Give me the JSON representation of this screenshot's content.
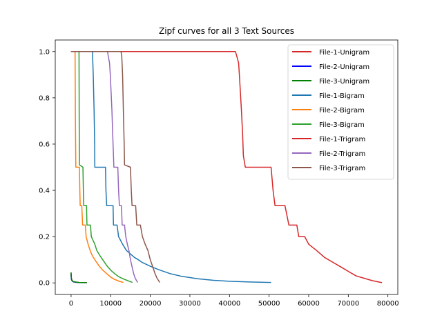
{
  "chart_data": {
    "type": "line",
    "title": "Zipf curves for all 3 Text Sources",
    "xlabel": "",
    "ylabel": "",
    "xlim": [
      -4000,
      82500
    ],
    "ylim": [
      -0.05,
      1.05
    ],
    "xticks": [
      0,
      10000,
      20000,
      30000,
      40000,
      50000,
      60000,
      70000,
      80000
    ],
    "xtick_labels": [
      "0",
      "10000",
      "20000",
      "30000",
      "40000",
      "50000",
      "60000",
      "70000",
      "80000"
    ],
    "yticks": [
      0.0,
      0.2,
      0.4,
      0.6,
      0.8,
      1.0
    ],
    "ytick_labels": [
      "0.0",
      "0.2",
      "0.4",
      "0.6",
      "0.8",
      "1.0"
    ],
    "grid": false,
    "legend_position": "top-right",
    "series": [
      {
        "name": "File-1-Unigram",
        "color": "#d62728",
        "points": [
          [
            0,
            0.045
          ],
          [
            30,
            0.03
          ],
          [
            80,
            0.02
          ],
          [
            200,
            0.012
          ],
          [
            500,
            0.006
          ],
          [
            1000,
            0.004
          ],
          [
            2000,
            0.002
          ],
          [
            4000,
            0.001
          ]
        ]
      },
      {
        "name": "File-2-Unigram",
        "color": "#0000ff",
        "points": [
          [
            0,
            0.04
          ],
          [
            30,
            0.025
          ],
          [
            80,
            0.015
          ],
          [
            200,
            0.01
          ],
          [
            500,
            0.005
          ],
          [
            1000,
            0.003
          ],
          [
            2000,
            0.0015
          ],
          [
            3500,
            0.001
          ]
        ]
      },
      {
        "name": "File-3-Unigram",
        "color": "#008000",
        "points": [
          [
            0,
            0.045
          ],
          [
            30,
            0.03
          ],
          [
            80,
            0.02
          ],
          [
            200,
            0.012
          ],
          [
            500,
            0.006
          ],
          [
            1000,
            0.004
          ],
          [
            2000,
            0.002
          ],
          [
            4000,
            0.001
          ]
        ]
      },
      {
        "name": "File-1-Bigram",
        "color": "#1f77b4",
        "points": [
          [
            0,
            1.0
          ],
          [
            5400,
            1.0
          ],
          [
            5600,
            0.9
          ],
          [
            5800,
            0.75
          ],
          [
            5950,
            0.6
          ],
          [
            6000,
            0.5
          ],
          [
            8700,
            0.5
          ],
          [
            8800,
            0.4
          ],
          [
            9000,
            0.334
          ],
          [
            10600,
            0.334
          ],
          [
            10700,
            0.25
          ],
          [
            11600,
            0.25
          ],
          [
            12000,
            0.2
          ],
          [
            13000,
            0.167
          ],
          [
            14000,
            0.14
          ],
          [
            15000,
            0.125
          ],
          [
            16000,
            0.11
          ],
          [
            17000,
            0.1
          ],
          [
            18000,
            0.088
          ],
          [
            20000,
            0.072
          ],
          [
            22000,
            0.058
          ],
          [
            25000,
            0.04
          ],
          [
            28000,
            0.028
          ],
          [
            32000,
            0.018
          ],
          [
            36000,
            0.011
          ],
          [
            40000,
            0.007
          ],
          [
            45000,
            0.004
          ],
          [
            50500,
            0.002
          ]
        ]
      },
      {
        "name": "File-2-Bigram",
        "color": "#ff7f0e",
        "points": [
          [
            0,
            1.0
          ],
          [
            1000,
            1.0
          ],
          [
            1100,
            0.7
          ],
          [
            1200,
            0.5
          ],
          [
            2100,
            0.5
          ],
          [
            2200,
            0.4
          ],
          [
            2300,
            0.334
          ],
          [
            2700,
            0.334
          ],
          [
            2900,
            0.25
          ],
          [
            3600,
            0.25
          ],
          [
            3800,
            0.2
          ],
          [
            4300,
            0.167
          ],
          [
            4800,
            0.14
          ],
          [
            5300,
            0.12
          ],
          [
            6000,
            0.1
          ],
          [
            7000,
            0.075
          ],
          [
            8000,
            0.055
          ],
          [
            9000,
            0.04
          ],
          [
            10000,
            0.025
          ],
          [
            11000,
            0.015
          ],
          [
            12000,
            0.008
          ],
          [
            13200,
            0.002
          ]
        ]
      },
      {
        "name": "File-3-Bigram",
        "color": "#2ca02c",
        "points": [
          [
            0,
            1.0
          ],
          [
            2000,
            1.0
          ],
          [
            2050,
            0.7
          ],
          [
            2100,
            0.51
          ],
          [
            3000,
            0.5
          ],
          [
            3100,
            0.4
          ],
          [
            3200,
            0.334
          ],
          [
            3900,
            0.334
          ],
          [
            4000,
            0.25
          ],
          [
            4900,
            0.25
          ],
          [
            5100,
            0.2
          ],
          [
            6000,
            0.167
          ],
          [
            6500,
            0.14
          ],
          [
            7200,
            0.12
          ],
          [
            8000,
            0.1
          ],
          [
            9000,
            0.075
          ],
          [
            10000,
            0.055
          ],
          [
            11000,
            0.04
          ],
          [
            12000,
            0.027
          ],
          [
            13500,
            0.015
          ],
          [
            15500,
            0.002
          ]
        ]
      },
      {
        "name": "File-1-Trigram",
        "color": "#d62728",
        "points": [
          [
            0,
            1.0
          ],
          [
            41500,
            1.0
          ],
          [
            42000,
            0.97
          ],
          [
            42300,
            0.95
          ],
          [
            42500,
            0.9
          ],
          [
            43000,
            0.75
          ],
          [
            43300,
            0.65
          ],
          [
            43500,
            0.55
          ],
          [
            44000,
            0.5
          ],
          [
            50500,
            0.5
          ],
          [
            51000,
            0.4
          ],
          [
            51500,
            0.334
          ],
          [
            54000,
            0.334
          ],
          [
            55000,
            0.25
          ],
          [
            57000,
            0.25
          ],
          [
            57500,
            0.2
          ],
          [
            59000,
            0.2
          ],
          [
            60000,
            0.167
          ],
          [
            62000,
            0.14
          ],
          [
            64000,
            0.11
          ],
          [
            66000,
            0.09
          ],
          [
            68000,
            0.07
          ],
          [
            70000,
            0.05
          ],
          [
            72000,
            0.03
          ],
          [
            74000,
            0.02
          ],
          [
            76000,
            0.01
          ],
          [
            78500,
            0.001
          ]
        ]
      },
      {
        "name": "File-2-Trigram",
        "color": "#9467bd",
        "points": [
          [
            0,
            1.0
          ],
          [
            9200,
            1.0
          ],
          [
            9400,
            0.98
          ],
          [
            9700,
            0.95
          ],
          [
            9900,
            0.9
          ],
          [
            10300,
            0.75
          ],
          [
            10600,
            0.6
          ],
          [
            10800,
            0.5
          ],
          [
            11800,
            0.5
          ],
          [
            12000,
            0.4
          ],
          [
            12200,
            0.334
          ],
          [
            12700,
            0.334
          ],
          [
            12900,
            0.25
          ],
          [
            13500,
            0.25
          ],
          [
            13800,
            0.2
          ],
          [
            14200,
            0.167
          ],
          [
            14600,
            0.14
          ],
          [
            15000,
            0.1
          ],
          [
            15400,
            0.07
          ],
          [
            15800,
            0.04
          ],
          [
            16200,
            0.02
          ],
          [
            16800,
            0.002
          ]
        ]
      },
      {
        "name": "File-3-Trigram",
        "color": "#8c564b",
        "points": [
          [
            0,
            1.0
          ],
          [
            12600,
            1.0
          ],
          [
            12800,
            0.98
          ],
          [
            13000,
            0.9
          ],
          [
            13200,
            0.75
          ],
          [
            13400,
            0.6
          ],
          [
            13500,
            0.51
          ],
          [
            15000,
            0.5
          ],
          [
            15200,
            0.4
          ],
          [
            15400,
            0.334
          ],
          [
            16300,
            0.334
          ],
          [
            16600,
            0.25
          ],
          [
            17500,
            0.25
          ],
          [
            18000,
            0.2
          ],
          [
            18700,
            0.167
          ],
          [
            19400,
            0.14
          ],
          [
            20000,
            0.1
          ],
          [
            20600,
            0.07
          ],
          [
            21200,
            0.04
          ],
          [
            21700,
            0.02
          ],
          [
            22400,
            0.002
          ]
        ]
      }
    ]
  }
}
